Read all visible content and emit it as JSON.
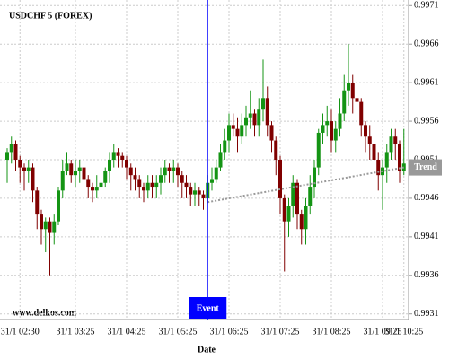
{
  "chart_data": {
    "type": "candlestick",
    "title": "USDCHF 5 (FOREX)",
    "watermark": "www.delkos.com",
    "x_label": "Date",
    "categories": [
      null,
      null,
      null,
      "31/1 02:30",
      null,
      null,
      null,
      null,
      null,
      null,
      null,
      null,
      null,
      null,
      null,
      null,
      "31/1 03:25",
      null,
      null,
      null,
      null,
      null,
      null,
      null,
      null,
      null,
      null,
      null,
      "31/1 04:25",
      null,
      null,
      null,
      null,
      null,
      null,
      null,
      null,
      null,
      null,
      null,
      "31/1 05:25",
      null,
      null,
      null,
      null,
      null,
      null,
      null,
      null,
      null,
      null,
      null,
      "31/1 06:25",
      null,
      null,
      null,
      null,
      null,
      null,
      null,
      null,
      null,
      null,
      null,
      "31/1 07:25",
      null,
      null,
      null,
      null,
      null,
      null,
      null,
      null,
      null,
      null,
      null,
      "31/1 08:25",
      null,
      null,
      null,
      null,
      null,
      null,
      null,
      null,
      null,
      null,
      null,
      "31/1 09:25",
      null,
      null,
      null,
      null,
      "31/1 10:25"
    ],
    "open": [
      0.9951,
      0.9952,
      0.9953,
      0.9951,
      0.995,
      0.99495,
      0.995,
      0.9947,
      0.9944,
      0.9942,
      0.9943,
      0.99415,
      0.9943,
      0.9947,
      0.99495,
      0.99505,
      0.9949,
      0.99495,
      0.995,
      0.99485,
      0.99475,
      0.9947,
      0.99475,
      0.9948,
      0.99495,
      0.9951,
      0.9952,
      0.99515,
      0.9951,
      0.995,
      0.9949,
      0.99485,
      0.99475,
      0.9947,
      0.9948,
      0.99475,
      0.9948,
      0.9949,
      0.995,
      0.99495,
      0.995,
      0.9949,
      0.9948,
      0.99475,
      0.99465,
      0.9947,
      0.99465,
      0.9946,
      0.9948,
      0.99485,
      0.995,
      0.9952,
      0.99535,
      0.99555,
      0.9955,
      0.9954,
      0.99555,
      0.99565,
      0.9957,
      0.99555,
      0.99575,
      0.9959,
      0.99555,
      0.99535,
      0.9951,
      0.9946,
      0.9943,
      0.9945,
      0.9948,
      0.9944,
      0.9942,
      0.9945,
      0.99475,
      0.995,
      0.99545,
      0.99555,
      0.9956,
      0.99535,
      0.9955,
      0.9957,
      0.996,
      0.9961,
      0.9959,
      0.99585,
      0.99555,
      0.9954,
      0.9953,
      0.9951,
      0.9949,
      0.995,
      0.9952,
      0.9954,
      0.9953,
      0.99495
    ],
    "high": [
      0.99525,
      0.9954,
      0.99535,
      0.99515,
      0.99505,
      0.9951,
      0.99505,
      0.99475,
      0.99445,
      0.99435,
      0.99435,
      0.9944,
      0.99475,
      0.9951,
      0.9952,
      0.9951,
      0.9951,
      0.9951,
      0.99505,
      0.9949,
      0.9948,
      0.9949,
      0.9949,
      0.995,
      0.9952,
      0.9953,
      0.99525,
      0.9952,
      0.99515,
      0.99505,
      0.995,
      0.9949,
      0.9948,
      0.9949,
      0.9949,
      0.9949,
      0.995,
      0.9951,
      0.99505,
      0.9951,
      0.99505,
      0.99495,
      0.9949,
      0.9948,
      0.9948,
      0.99475,
      0.9947,
      0.9949,
      0.995,
      0.9951,
      0.9953,
      0.9955,
      0.9957,
      0.9957,
      0.99565,
      0.9957,
      0.9958,
      0.996,
      0.99575,
      0.9959,
      0.9964,
      0.99605,
      0.9956,
      0.9954,
      0.99515,
      0.99465,
      0.9946,
      0.9949,
      0.99485,
      0.99445,
      0.9946,
      0.9949,
      0.9951,
      0.9955,
      0.9957,
      0.9958,
      0.99575,
      0.9956,
      0.9959,
      0.9962,
      0.9966,
      0.9962,
      0.996,
      0.9959,
      0.9956,
      0.99555,
      0.9954,
      0.9952,
      0.9951,
      0.9953,
      0.9955,
      0.9955,
      0.99535,
      0.9955
    ],
    "low": [
      0.9948,
      0.99505,
      0.99495,
      0.9948,
      0.9947,
      0.9948,
      0.99455,
      0.9942,
      0.994,
      0.9939,
      0.9936,
      0.994,
      0.99425,
      0.9946,
      0.9949,
      0.9948,
      0.99475,
      0.9948,
      0.9947,
      0.9946,
      0.99455,
      0.9946,
      0.9946,
      0.99475,
      0.9948,
      0.995,
      0.995,
      0.995,
      0.99485,
      0.9947,
      0.9947,
      0.9946,
      0.99455,
      0.9946,
      0.9946,
      0.9946,
      0.99465,
      0.9948,
      0.9948,
      0.9948,
      0.99475,
      0.9946,
      0.9946,
      0.9945,
      0.9945,
      0.9945,
      0.99445,
      0.99455,
      0.9947,
      0.9948,
      0.99495,
      0.9951,
      0.9952,
      0.9954,
      0.9952,
      0.9953,
      0.9954,
      0.9955,
      0.9954,
      0.9954,
      0.9956,
      0.9954,
      0.9952,
      0.9949,
      0.9944,
      0.99365,
      0.9941,
      0.99435,
      0.9942,
      0.994,
      0.994,
      0.9944,
      0.9946,
      0.9949,
      0.9953,
      0.9954,
      0.9952,
      0.9952,
      0.9954,
      0.9956,
      0.9958,
      0.9957,
      0.9956,
      0.9954,
      0.9952,
      0.9951,
      0.9949,
      0.9947,
      0.99445,
      0.9948,
      0.9951,
      0.9951,
      0.9948,
      0.9949
    ],
    "close": [
      0.9952,
      0.9953,
      0.9951,
      0.995,
      0.99495,
      0.995,
      0.9947,
      0.9944,
      0.9942,
      0.9943,
      0.99415,
      0.9943,
      0.9947,
      0.99495,
      0.99505,
      0.9949,
      0.99495,
      0.995,
      0.99485,
      0.99475,
      0.9947,
      0.99475,
      0.9948,
      0.99495,
      0.9951,
      0.9952,
      0.99515,
      0.9951,
      0.995,
      0.9949,
      0.99485,
      0.99475,
      0.9947,
      0.9948,
      0.99475,
      0.9948,
      0.9949,
      0.995,
      0.99495,
      0.995,
      0.9949,
      0.9948,
      0.99475,
      0.99465,
      0.9947,
      0.99465,
      0.9946,
      0.9948,
      0.99485,
      0.995,
      0.9952,
      0.99535,
      0.99555,
      0.9955,
      0.9954,
      0.99555,
      0.99565,
      0.9957,
      0.99555,
      0.99575,
      0.9959,
      0.99555,
      0.99535,
      0.9951,
      0.9946,
      0.9943,
      0.9945,
      0.9948,
      0.9944,
      0.9942,
      0.9945,
      0.99475,
      0.995,
      0.99545,
      0.99555,
      0.9956,
      0.99535,
      0.9955,
      0.9957,
      0.996,
      0.9961,
      0.9959,
      0.99585,
      0.99555,
      0.9954,
      0.9953,
      0.9951,
      0.9949,
      0.995,
      0.9952,
      0.9954,
      0.9953,
      0.99495,
      0.99505
    ],
    "up_color": "#149414",
    "down_color": "#800000",
    "ylim": [
      0.99305,
      0.99715
    ],
    "yticks": [
      0.9931,
      0.9936,
      0.9941,
      0.9946,
      0.9951,
      0.9956,
      0.9961,
      0.9966,
      0.9971
    ],
    "grid": true,
    "event": {
      "label": "Event",
      "category_index": 47,
      "color": "#0000ff"
    },
    "trend": {
      "label": "Trend",
      "start_index": 47,
      "start": 0.99455,
      "end": 0.995,
      "color": "#999999"
    }
  }
}
